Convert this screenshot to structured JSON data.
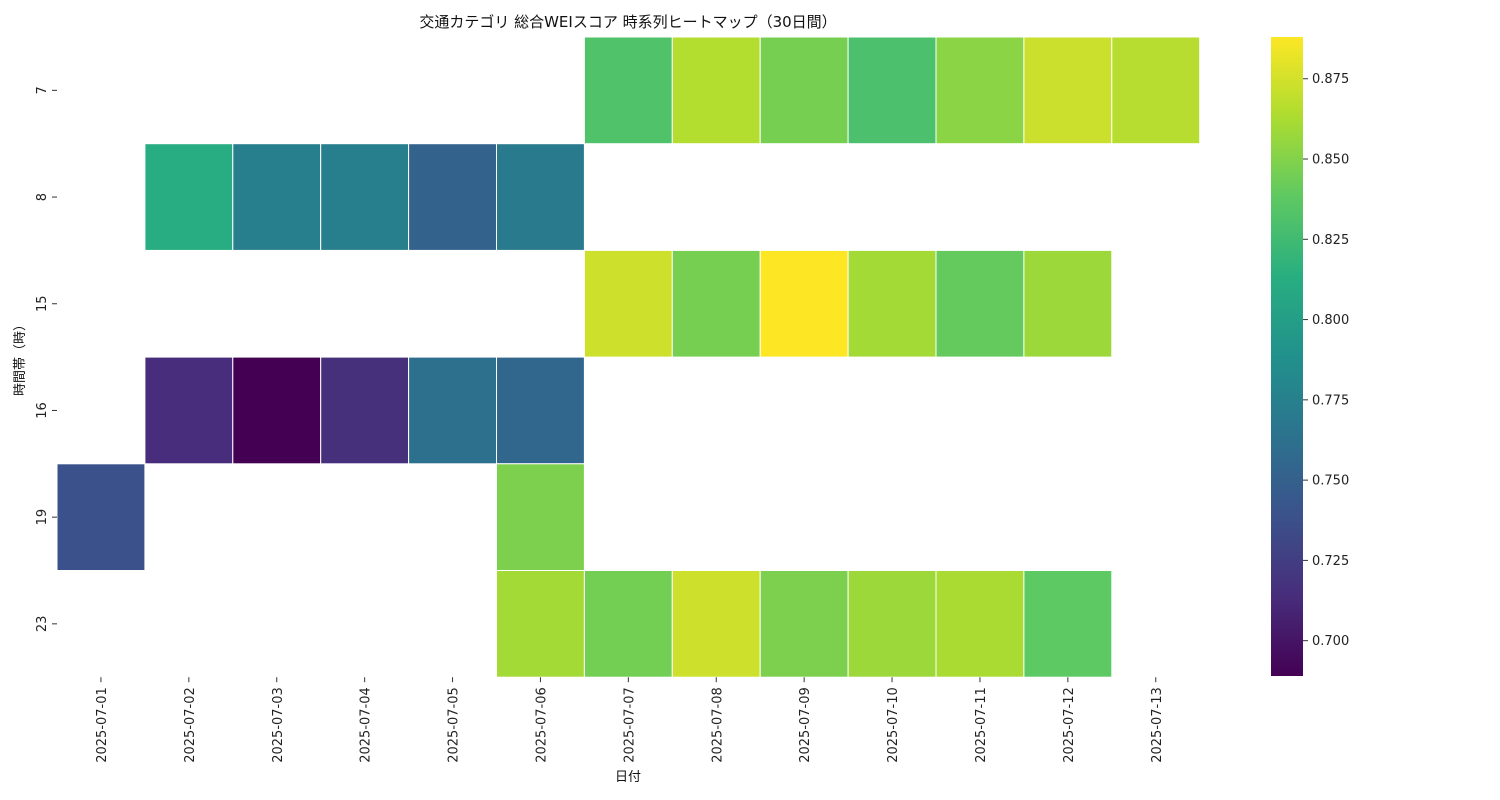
{
  "chart_data": {
    "type": "heatmap",
    "title": "交通カテゴリ 総合WEIスコア 時系列ヒートマップ（30日間）",
    "xlabel": "日付",
    "ylabel": "時間帯（時）",
    "x": [
      "2025-07-01",
      "2025-07-02",
      "2025-07-03",
      "2025-07-04",
      "2025-07-05",
      "2025-07-06",
      "2025-07-07",
      "2025-07-08",
      "2025-07-09",
      "2025-07-10",
      "2025-07-11",
      "2025-07-12",
      "2025-07-13"
    ],
    "y": [
      "7",
      "8",
      "15",
      "16",
      "19",
      "23"
    ],
    "values": [
      [
        null,
        null,
        null,
        null,
        null,
        null,
        0.832,
        0.865,
        0.846,
        0.83,
        0.852,
        0.872,
        0.866
      ],
      [
        null,
        0.812,
        0.774,
        0.774,
        0.752,
        0.77,
        null,
        null,
        null,
        null,
        null,
        null,
        null
      ],
      [
        null,
        null,
        null,
        null,
        null,
        null,
        0.873,
        0.846,
        0.888,
        0.86,
        0.84,
        0.858,
        null
      ],
      [
        null,
        0.714,
        0.689,
        0.716,
        0.762,
        0.755,
        null,
        null,
        null,
        null,
        null,
        null,
        null
      ],
      [
        0.738,
        null,
        null,
        null,
        null,
        0.848,
        null,
        null,
        null,
        null,
        null,
        null,
        null
      ],
      [
        null,
        null,
        null,
        null,
        null,
        0.86,
        0.845,
        0.873,
        0.848,
        0.858,
        0.862,
        0.838,
        null
      ]
    ],
    "colorscale": "viridis",
    "colorbar": {
      "range": [
        0.689,
        0.888
      ],
      "ticks": [
        "0.700",
        "0.725",
        "0.750",
        "0.775",
        "0.800",
        "0.825",
        "0.850",
        "0.875"
      ]
    },
    "grid": false
  }
}
